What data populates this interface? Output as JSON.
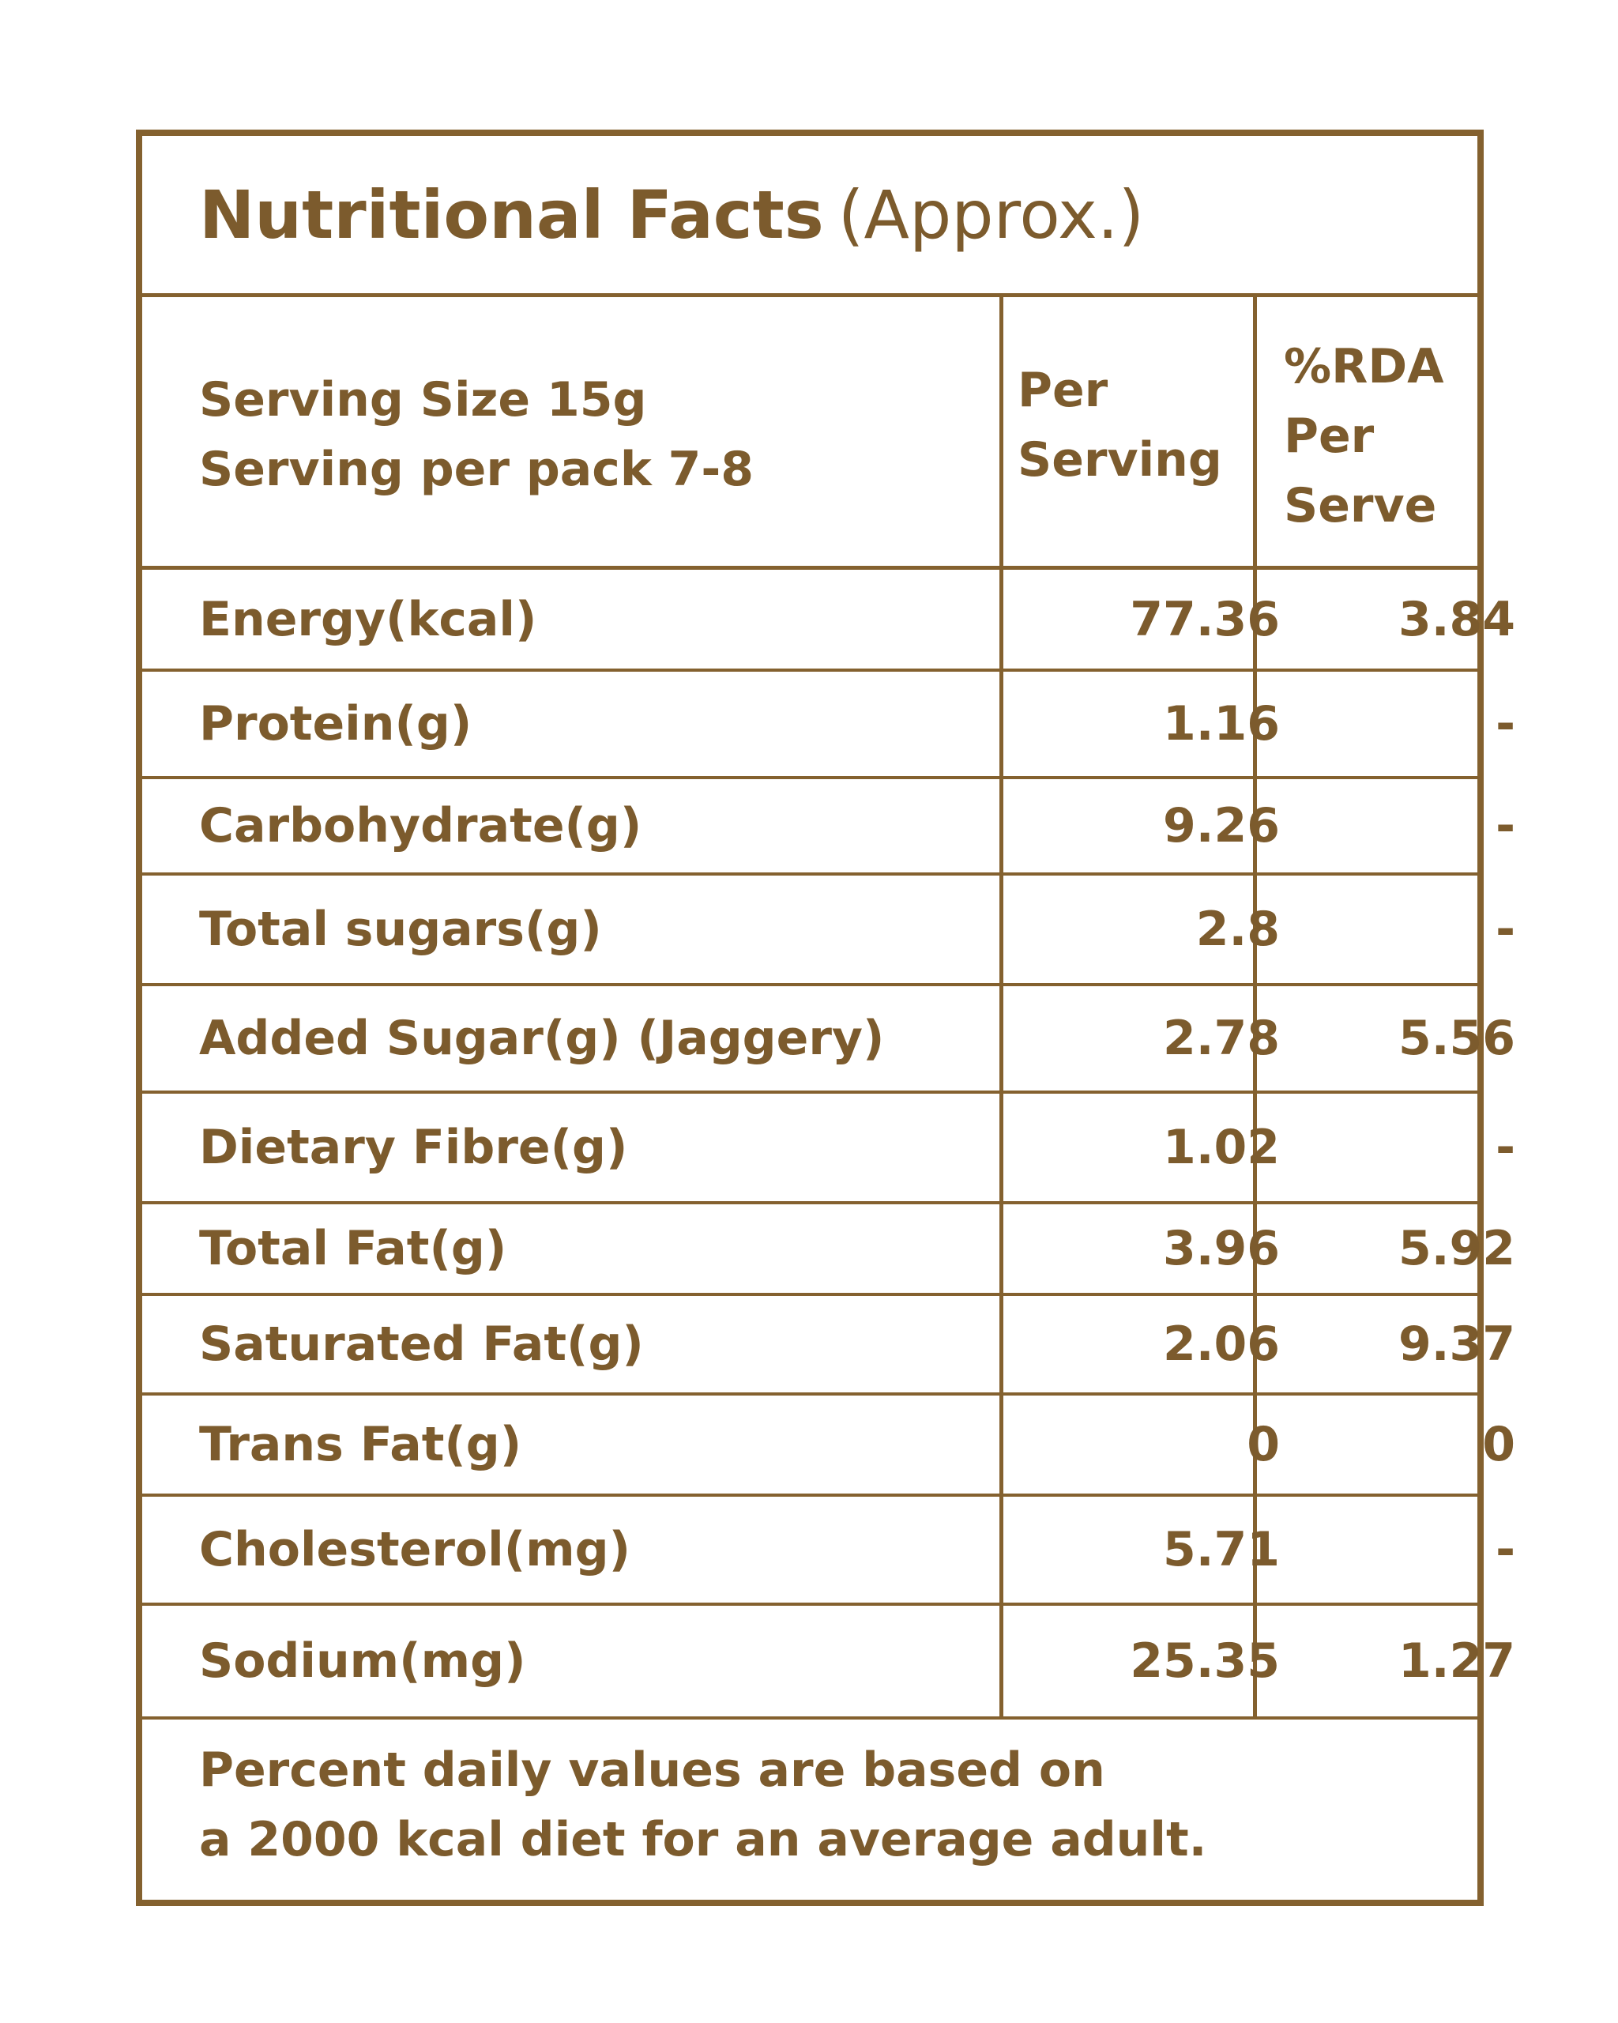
{
  "title": {
    "bold": "Nutritional Facts",
    "light": "(Approx.)"
  },
  "header": {
    "serving_size": "Serving Size 15g",
    "serving_per_pack": "Serving per pack 7-8",
    "per_serving_line1": "Per",
    "per_serving_line2": "Serving",
    "rda_line1": "%RDA",
    "rda_line2": "Per",
    "rda_line3": "Serve"
  },
  "rows": [
    {
      "nutrient": "Energy(kcal)",
      "per_serving": "77.36",
      "rda": "3.84"
    },
    {
      "nutrient": "Protein(g)",
      "per_serving": "1.16",
      "rda": "-"
    },
    {
      "nutrient": "Carbohydrate(g)",
      "per_serving": "9.26",
      "rda": "-"
    },
    {
      "nutrient": "Total sugars(g)",
      "per_serving": "2.8",
      "rda": "-"
    },
    {
      "nutrient": "Added Sugar(g) (Jaggery)",
      "per_serving": "2.78",
      "rda": "5.56"
    },
    {
      "nutrient": "Dietary Fibre(g)",
      "per_serving": "1.02",
      "rda": "-"
    },
    {
      "nutrient": "Total Fat(g)",
      "per_serving": "3.96",
      "rda": "5.92"
    },
    {
      "nutrient": "Saturated Fat(g)",
      "per_serving": "2.06",
      "rda": "9.37"
    },
    {
      "nutrient": "Trans Fat(g)",
      "per_serving": "0",
      "rda": "0"
    },
    {
      "nutrient": "Cholesterol(mg)",
      "per_serving": "5.71",
      "rda": "-"
    },
    {
      "nutrient": "Sodium(mg)",
      "per_serving": "25.35",
      "rda": "1.27"
    }
  ],
  "footer": {
    "line1": "Percent daily values are based on",
    "line2": "a 2000 kcal diet for an average adult."
  },
  "colors": {
    "border": "#84612f",
    "text": "#7c5b2d",
    "background": "#ffffff"
  }
}
